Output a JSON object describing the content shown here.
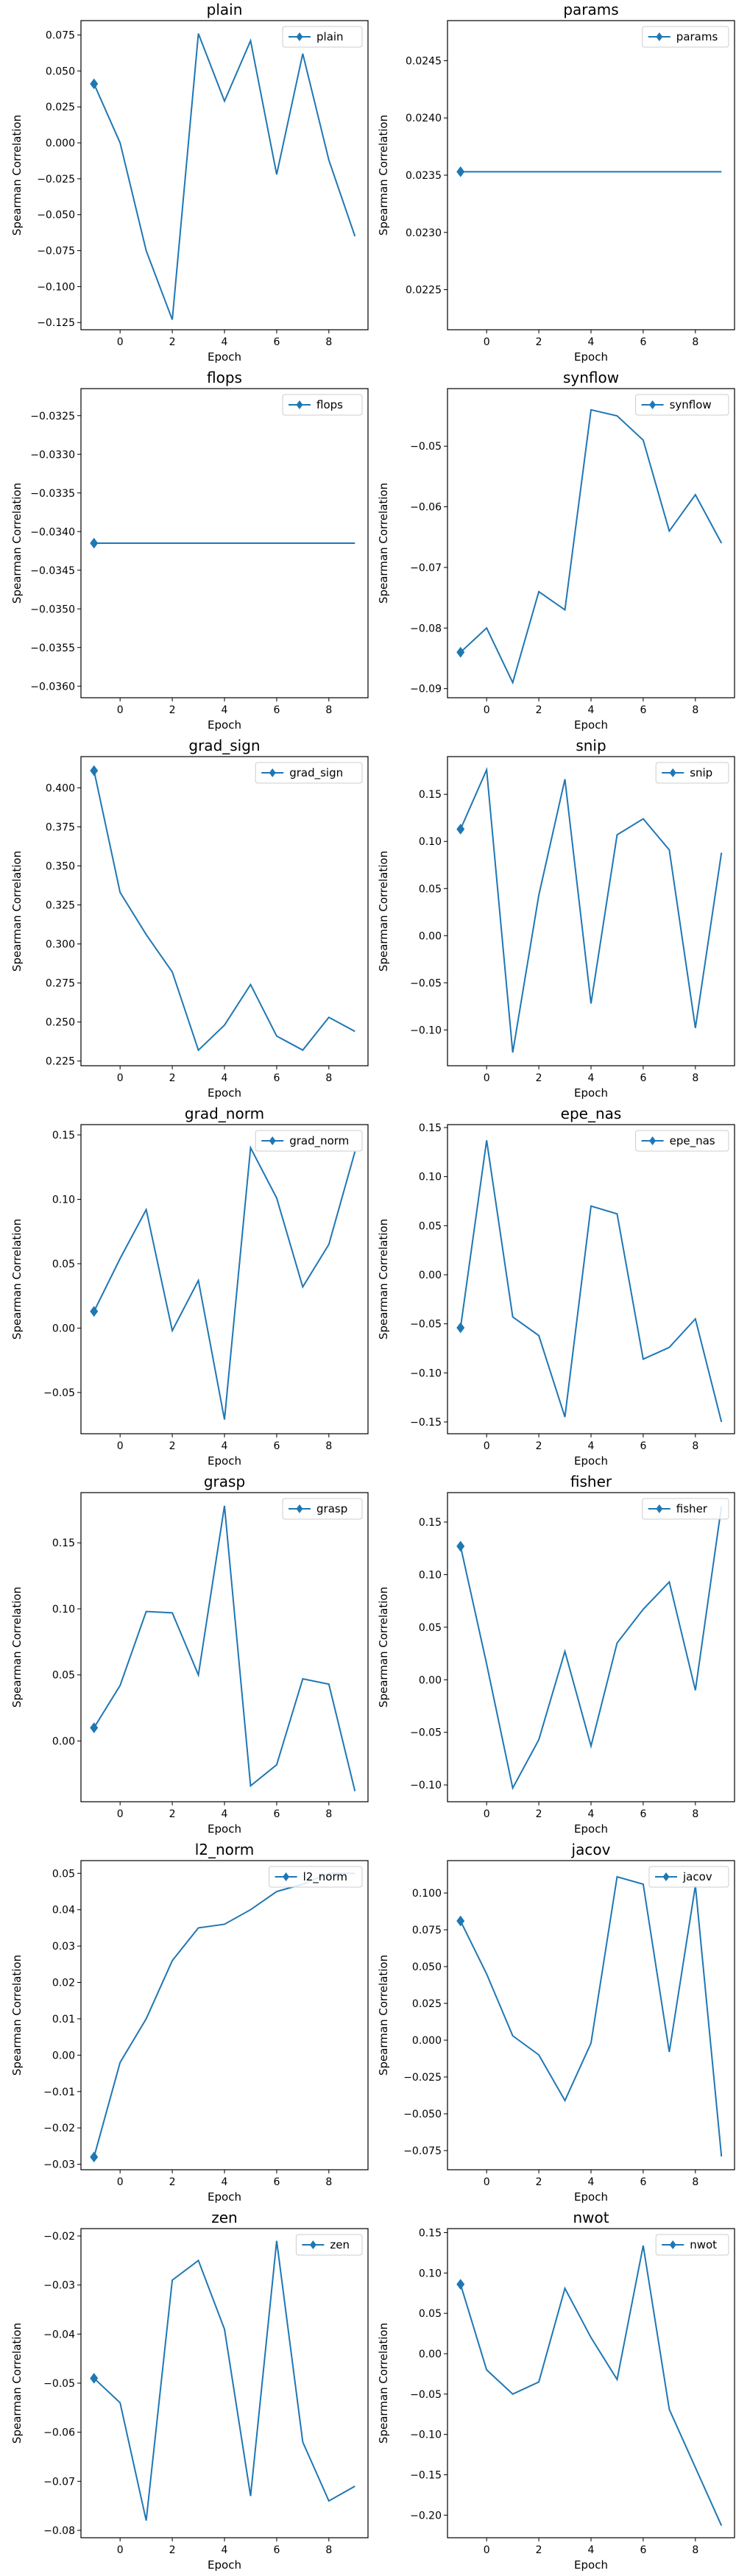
{
  "chart_data": [
    {
      "type": "line",
      "title": "plain",
      "xlabel": "Epoch",
      "ylabel": "Spearman Correlation",
      "legend": "top-right",
      "xlim": [
        -1.5,
        9.5
      ],
      "ylim": [
        -0.13,
        0.085
      ],
      "x": [
        -1,
        0,
        1,
        2,
        3,
        4,
        5,
        6,
        7,
        8,
        9
      ],
      "xticks": [
        0,
        2,
        4,
        6,
        8
      ],
      "yticks": [
        -0.125,
        -0.1,
        -0.075,
        -0.05,
        -0.025,
        0,
        0.025,
        0.05,
        0.075
      ],
      "ytick_labels": [
        "−0.125",
        "−0.100",
        "−0.075",
        "−0.050",
        "−0.025",
        "0.000",
        "0.025",
        "0.050",
        "0.075"
      ],
      "series": [
        {
          "name": "plain",
          "values": [
            0.041,
            0.0,
            -0.075,
            -0.123,
            0.076,
            0.029,
            0.071,
            -0.022,
            0.062,
            -0.012,
            -0.065
          ]
        }
      ]
    },
    {
      "type": "line",
      "title": "params",
      "xlabel": "Epoch",
      "ylabel": "Spearman Correlation",
      "legend": "top-right",
      "xlim": [
        -1.5,
        9.5
      ],
      "ylim": [
        0.02215,
        0.02485
      ],
      "x": [
        -1,
        9
      ],
      "xticks": [
        0,
        2,
        4,
        6,
        8
      ],
      "yticks": [
        0.0225,
        0.023,
        0.0235,
        0.024,
        0.0245
      ],
      "ytick_labels": [
        "0.0225",
        "0.0230",
        "0.0235",
        "0.0240",
        "0.0245"
      ],
      "series": [
        {
          "name": "params",
          "values": [
            0.02353,
            0.02353
          ]
        }
      ]
    },
    {
      "type": "line",
      "title": "flops",
      "xlabel": "Epoch",
      "ylabel": "Spearman Correlation",
      "legend": "top-right",
      "xlim": [
        -1.5,
        9.5
      ],
      "ylim": [
        -0.03615,
        -0.03215
      ],
      "x": [
        -1,
        9
      ],
      "xticks": [
        0,
        2,
        4,
        6,
        8
      ],
      "yticks": [
        -0.0325,
        -0.033,
        -0.0335,
        -0.034,
        -0.0345,
        -0.035,
        -0.0355,
        -0.036
      ],
      "ytick_labels": [
        "−0.0325",
        "−0.0330",
        "−0.0335",
        "−0.0340",
        "−0.0345",
        "−0.0350",
        "−0.0355",
        "−0.0360"
      ],
      "series": [
        {
          "name": "flops",
          "values": [
            -0.03415,
            -0.03415
          ]
        }
      ]
    },
    {
      "type": "line",
      "title": "synflow",
      "xlabel": "Epoch",
      "ylabel": "Spearman Correlation",
      "legend": "top-right",
      "xlim": [
        -1.5,
        9.5
      ],
      "ylim": [
        -0.0915,
        -0.0405
      ],
      "x": [
        -1,
        0,
        1,
        2,
        3,
        4,
        5,
        6,
        7,
        8,
        9
      ],
      "xticks": [
        0,
        2,
        4,
        6,
        8
      ],
      "yticks": [
        -0.05,
        -0.06,
        -0.07,
        -0.08,
        -0.09
      ],
      "ytick_labels": [
        "−0.05",
        "−0.06",
        "−0.07",
        "−0.08",
        "−0.09"
      ],
      "series": [
        {
          "name": "synflow",
          "values": [
            -0.084,
            -0.08,
            -0.089,
            -0.074,
            -0.077,
            -0.044,
            -0.045,
            -0.049,
            -0.064,
            -0.058,
            -0.066
          ]
        }
      ]
    },
    {
      "type": "line",
      "title": "grad_sign",
      "xlabel": "Epoch",
      "ylabel": "Spearman Correlation",
      "legend": "top-right",
      "xlim": [
        -1.5,
        9.5
      ],
      "ylim": [
        0.222,
        0.42
      ],
      "x": [
        -1,
        0,
        1,
        2,
        3,
        4,
        5,
        6,
        7,
        8,
        9
      ],
      "xticks": [
        0,
        2,
        4,
        6,
        8
      ],
      "yticks": [
        0.225,
        0.25,
        0.275,
        0.3,
        0.325,
        0.35,
        0.375,
        0.4
      ],
      "ytick_labels": [
        "0.225",
        "0.250",
        "0.275",
        "0.300",
        "0.325",
        "0.350",
        "0.375",
        "0.400"
      ],
      "series": [
        {
          "name": "grad_sign",
          "values": [
            0.411,
            0.333,
            0.306,
            0.282,
            0.232,
            0.248,
            0.274,
            0.241,
            0.232,
            0.253,
            0.244
          ]
        }
      ]
    },
    {
      "type": "line",
      "title": "snip",
      "xlabel": "Epoch",
      "ylabel": "Spearman Correlation",
      "legend": "top-right",
      "xlim": [
        -1.5,
        9.5
      ],
      "ylim": [
        -0.138,
        0.19
      ],
      "x": [
        -1,
        0,
        1,
        2,
        3,
        4,
        5,
        6,
        7,
        8,
        9
      ],
      "xticks": [
        0,
        2,
        4,
        6,
        8
      ],
      "yticks": [
        -0.1,
        -0.05,
        0,
        0.05,
        0.1,
        0.15
      ],
      "ytick_labels": [
        "−0.10",
        "−0.05",
        "0.00",
        "0.05",
        "0.10",
        "0.15"
      ],
      "series": [
        {
          "name": "snip",
          "values": [
            0.113,
            0.176,
            -0.124,
            0.043,
            0.166,
            -0.072,
            0.107,
            0.124,
            0.091,
            -0.098,
            0.088
          ]
        }
      ]
    },
    {
      "type": "line",
      "title": "grad_norm",
      "xlabel": "Epoch",
      "ylabel": "Spearman Correlation",
      "legend": "top-right",
      "xlim": [
        -1.5,
        9.5
      ],
      "ylim": [
        -0.082,
        0.158
      ],
      "x": [
        -1,
        0,
        1,
        2,
        3,
        4,
        5,
        6,
        7,
        8,
        9
      ],
      "xticks": [
        0,
        2,
        4,
        6,
        8
      ],
      "yticks": [
        -0.05,
        0,
        0.05,
        0.1,
        0.15
      ],
      "ytick_labels": [
        "−0.05",
        "0.00",
        "0.05",
        "0.10",
        "0.15"
      ],
      "series": [
        {
          "name": "grad_norm",
          "values": [
            0.013,
            0.054,
            0.092,
            -0.002,
            0.037,
            -0.071,
            0.14,
            0.101,
            0.032,
            0.065,
            0.137
          ]
        }
      ]
    },
    {
      "type": "line",
      "title": "epe_nas",
      "xlabel": "Epoch",
      "ylabel": "Spearman Correlation",
      "legend": "top-right",
      "xlim": [
        -1.5,
        9.5
      ],
      "ylim": [
        -0.162,
        0.153
      ],
      "x": [
        -1,
        0,
        1,
        2,
        3,
        4,
        5,
        6,
        7,
        8,
        9
      ],
      "xticks": [
        0,
        2,
        4,
        6,
        8
      ],
      "yticks": [
        -0.15,
        -0.1,
        -0.05,
        0,
        0.05,
        0.1,
        0.15
      ],
      "ytick_labels": [
        "−0.15",
        "−0.10",
        "−0.05",
        "0.00",
        "0.05",
        "0.10",
        "0.15"
      ],
      "series": [
        {
          "name": "epe_nas",
          "values": [
            -0.054,
            0.137,
            -0.043,
            -0.062,
            -0.145,
            0.07,
            0.062,
            -0.086,
            -0.074,
            -0.045,
            -0.15
          ]
        }
      ]
    },
    {
      "type": "line",
      "title": "grasp",
      "xlabel": "Epoch",
      "ylabel": "Spearman Correlation",
      "legend": "top-right",
      "xlim": [
        -1.5,
        9.5
      ],
      "ylim": [
        -0.046,
        0.188
      ],
      "x": [
        -1,
        0,
        1,
        2,
        3,
        4,
        5,
        6,
        7,
        8,
        9
      ],
      "xticks": [
        0,
        2,
        4,
        6,
        8
      ],
      "yticks": [
        0,
        0.05,
        0.1,
        0.15
      ],
      "ytick_labels": [
        "0.00",
        "0.05",
        "0.10",
        "0.15"
      ],
      "series": [
        {
          "name": "grasp",
          "values": [
            0.01,
            0.042,
            0.098,
            0.097,
            0.05,
            0.178,
            -0.034,
            -0.018,
            0.047,
            0.043,
            -0.038
          ]
        }
      ]
    },
    {
      "type": "line",
      "title": "fisher",
      "xlabel": "Epoch",
      "ylabel": "Spearman Correlation",
      "legend": "top-right",
      "xlim": [
        -1.5,
        9.5
      ],
      "ylim": [
        -0.116,
        0.178
      ],
      "x": [
        -1,
        0,
        1,
        2,
        3,
        4,
        5,
        6,
        7,
        8,
        9
      ],
      "xticks": [
        0,
        2,
        4,
        6,
        8
      ],
      "yticks": [
        -0.1,
        -0.05,
        0,
        0.05,
        0.1,
        0.15
      ],
      "ytick_labels": [
        "−0.10",
        "−0.05",
        "0.00",
        "0.05",
        "0.10",
        "0.15"
      ],
      "series": [
        {
          "name": "fisher",
          "values": [
            0.127,
            0.015,
            -0.103,
            -0.057,
            0.027,
            -0.063,
            0.035,
            0.067,
            0.093,
            -0.01,
            0.165
          ]
        }
      ]
    },
    {
      "type": "line",
      "title": "l2_norm",
      "xlabel": "Epoch",
      "ylabel": "Spearman Correlation",
      "legend": "top-right",
      "xlim": [
        -1.5,
        9.5
      ],
      "ylim": [
        -0.0315,
        0.0535
      ],
      "x": [
        -1,
        0,
        1,
        2,
        3,
        4,
        5,
        6,
        7,
        8,
        9
      ],
      "xticks": [
        0,
        2,
        4,
        6,
        8
      ],
      "yticks": [
        -0.03,
        -0.02,
        -0.01,
        0,
        0.01,
        0.02,
        0.03,
        0.04,
        0.05
      ],
      "ytick_labels": [
        "−0.03",
        "−0.02",
        "−0.01",
        "0.00",
        "0.01",
        "0.02",
        "0.03",
        "0.04",
        "0.05"
      ],
      "series": [
        {
          "name": "l2_norm",
          "values": [
            -0.028,
            -0.002,
            0.01,
            0.026,
            0.035,
            0.036,
            0.04,
            0.045,
            0.047,
            0.05,
            0.05
          ]
        }
      ]
    },
    {
      "type": "line",
      "title": "jacov",
      "xlabel": "Epoch",
      "ylabel": "Spearman Correlation",
      "legend": "top-right",
      "xlim": [
        -1.5,
        9.5
      ],
      "ylim": [
        -0.088,
        0.122
      ],
      "x": [
        -1,
        0,
        1,
        2,
        3,
        4,
        5,
        6,
        7,
        8,
        9
      ],
      "xticks": [
        0,
        2,
        4,
        6,
        8
      ],
      "yticks": [
        -0.075,
        -0.05,
        -0.025,
        0,
        0.025,
        0.05,
        0.075,
        0.1
      ],
      "ytick_labels": [
        "−0.075",
        "−0.050",
        "−0.025",
        "0.000",
        "0.025",
        "0.050",
        "0.075",
        "0.100"
      ],
      "series": [
        {
          "name": "jacov",
          "values": [
            0.081,
            0.045,
            0.003,
            -0.01,
            -0.041,
            -0.002,
            0.111,
            0.106,
            -0.008,
            0.105,
            -0.079
          ]
        }
      ]
    },
    {
      "type": "line",
      "title": "zen",
      "xlabel": "Epoch",
      "ylabel": "Spearman Correlation",
      "legend": "top-right",
      "xlim": [
        -1.5,
        9.5
      ],
      "ylim": [
        -0.0815,
        -0.0185
      ],
      "x": [
        -1,
        0,
        1,
        2,
        3,
        4,
        5,
        6,
        7,
        8,
        9
      ],
      "xticks": [
        0,
        2,
        4,
        6,
        8
      ],
      "yticks": [
        -0.02,
        -0.03,
        -0.04,
        -0.05,
        -0.06,
        -0.07,
        -0.08
      ],
      "ytick_labels": [
        "−0.02",
        "−0.03",
        "−0.04",
        "−0.05",
        "−0.06",
        "−0.07",
        "−0.08"
      ],
      "series": [
        {
          "name": "zen",
          "values": [
            -0.049,
            -0.054,
            -0.078,
            -0.029,
            -0.025,
            -0.039,
            -0.073,
            -0.021,
            -0.062,
            -0.074,
            -0.071
          ]
        }
      ]
    },
    {
      "type": "line",
      "title": "nwot",
      "xlabel": "Epoch",
      "ylabel": "Spearman Correlation",
      "legend": "top-right",
      "xlim": [
        -1.5,
        9.5
      ],
      "ylim": [
        -0.228,
        0.155
      ],
      "x": [
        -1,
        0,
        1,
        2,
        3,
        4,
        5,
        6,
        7,
        8,
        9
      ],
      "xticks": [
        0,
        2,
        4,
        6,
        8
      ],
      "yticks": [
        -0.2,
        -0.15,
        -0.1,
        -0.05,
        0,
        0.05,
        0.1,
        0.15
      ],
      "ytick_labels": [
        "−0.20",
        "−0.15",
        "−0.10",
        "−0.05",
        "0.00",
        "0.05",
        "0.10",
        "0.15"
      ],
      "series": [
        {
          "name": "nwot",
          "values": [
            0.086,
            -0.02,
            -0.05,
            -0.035,
            0.081,
            0.02,
            -0.032,
            0.134,
            -0.069,
            -0.141,
            -0.213
          ]
        }
      ]
    }
  ],
  "colors": {
    "line": "#1f77b4",
    "axes": "#000000"
  }
}
